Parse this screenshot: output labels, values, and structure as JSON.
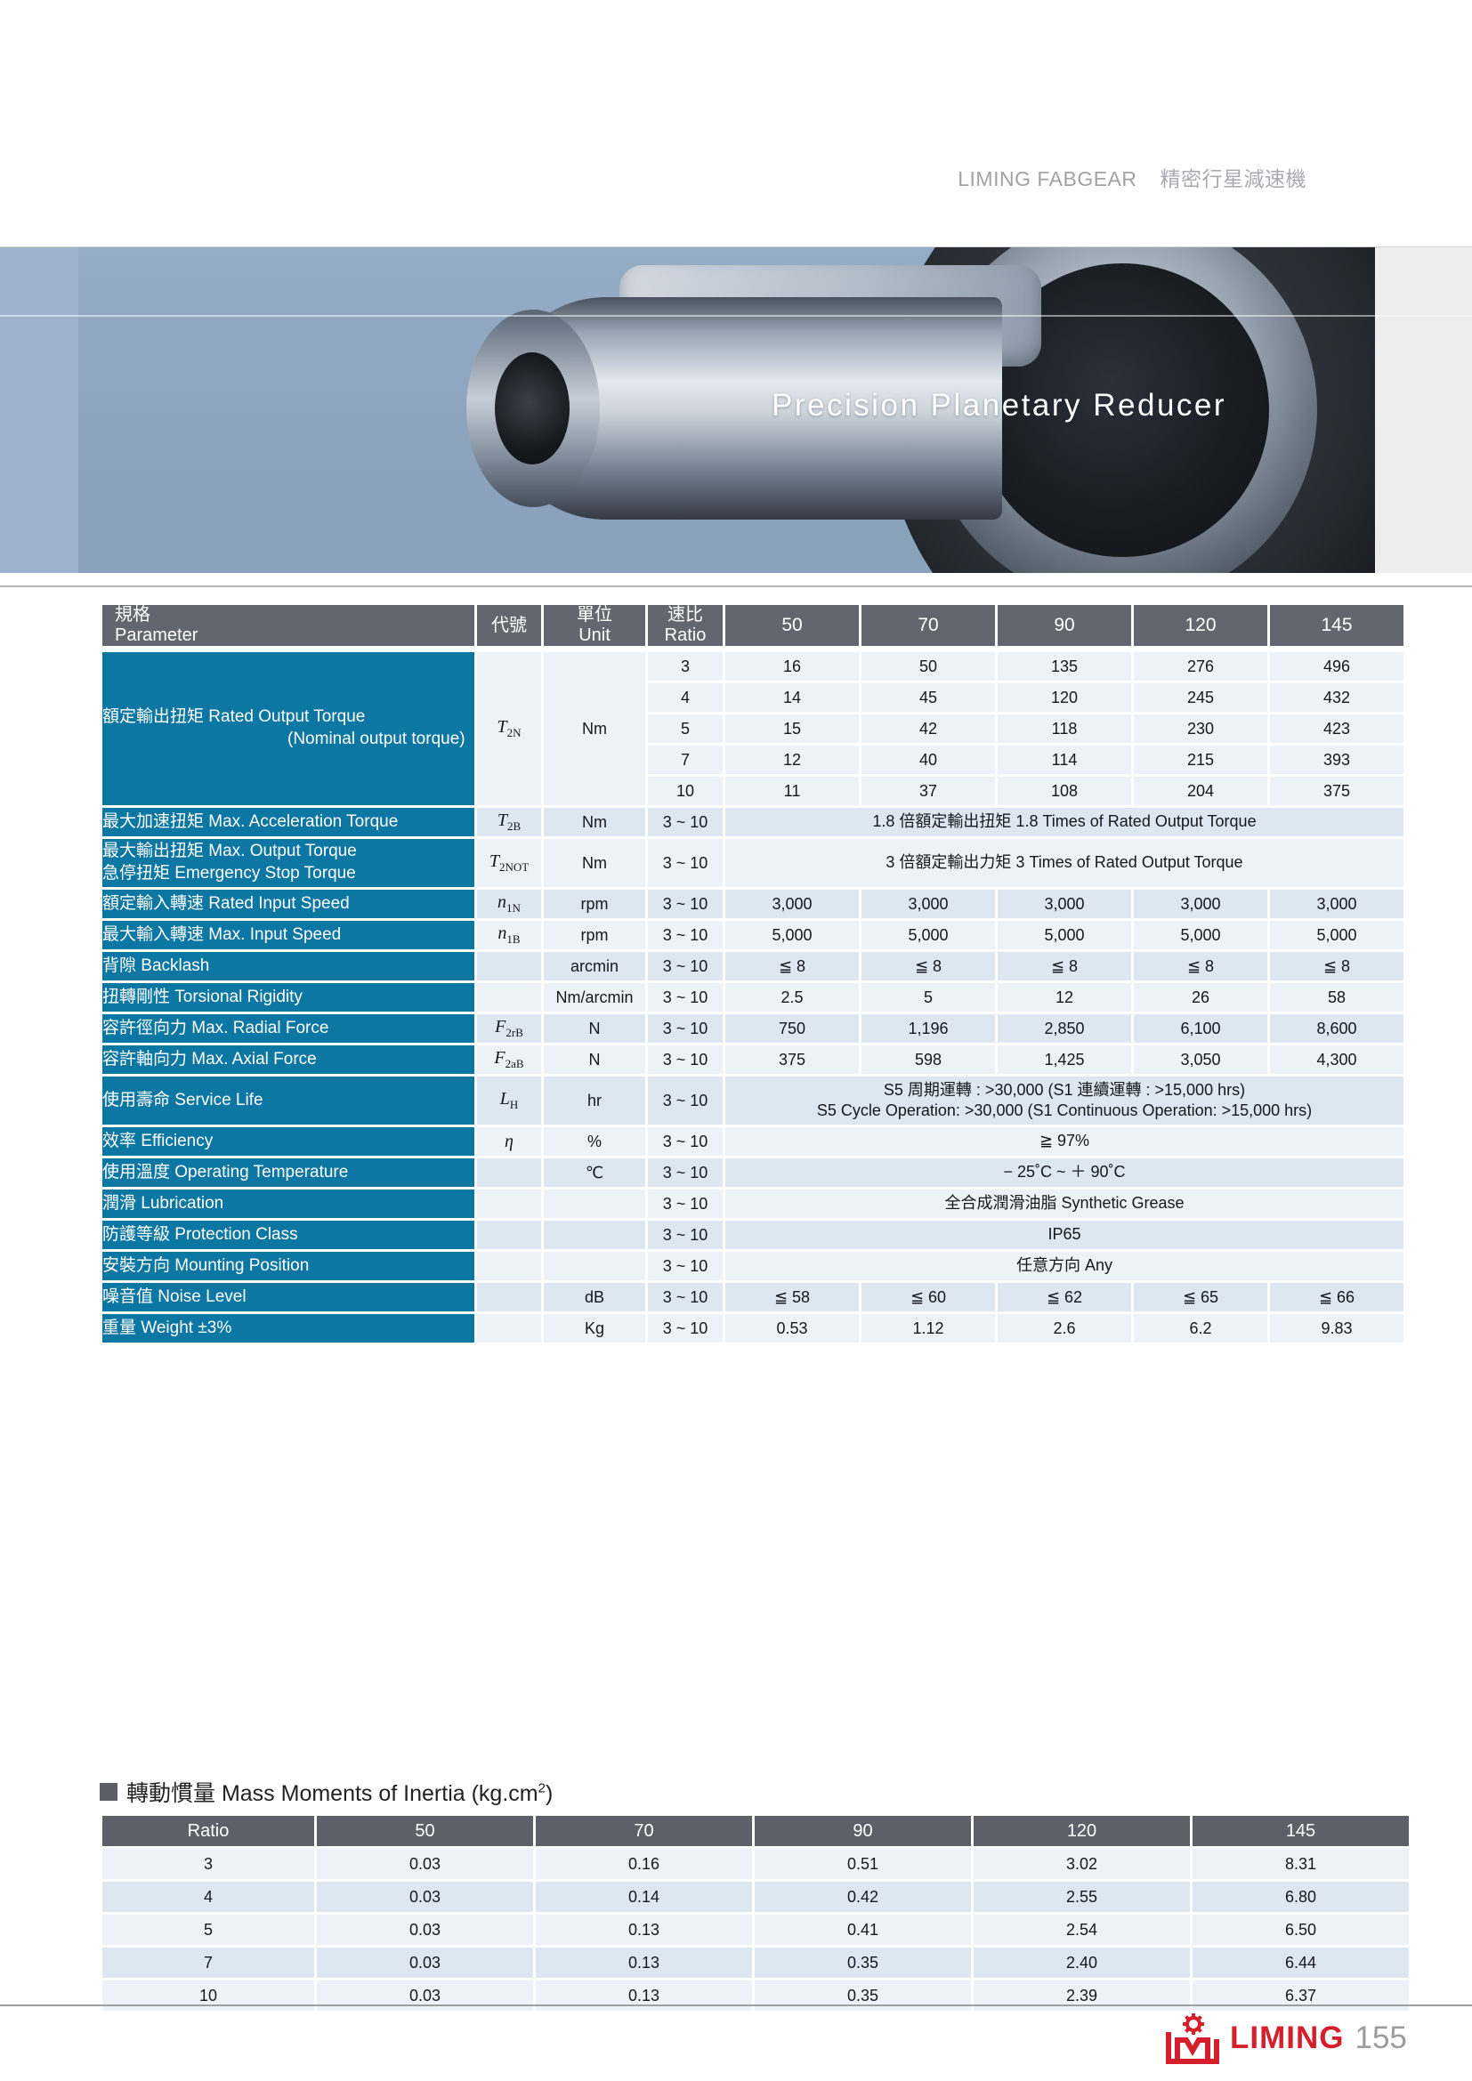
{
  "page_header": {
    "brand": "LIMING FABGEAR",
    "subtitle": "精密行星減速機"
  },
  "hero": {
    "title": "Precision Planetary Reducer"
  },
  "colors": {
    "label_teal": "#0d77a4",
    "header_gray": "#64666f",
    "inertia_header_gray": "#5d6069",
    "row_light": "#edf2f9",
    "row_dark": "#dce7f1",
    "brand_red": "#d51f2d",
    "hero_left_strip": "#9db4cc",
    "hero_right_strip": "#ededed"
  },
  "spec_table": {
    "headers": {
      "parameter_zh": "規格",
      "parameter_en": "Parameter",
      "symbol": "代號",
      "unit_zh": "單位",
      "unit_en": "Unit",
      "ratio_zh": "速比",
      "ratio_en": "Ratio",
      "sizes": [
        "50",
        "70",
        "90",
        "120",
        "145"
      ]
    },
    "rows": [
      {
        "id": "rated-output-torque",
        "label_lines": [
          "額定輸出扭矩 Rated Output Torque",
          "(Nominal output torque)"
        ],
        "indent_line2": true,
        "symbol": {
          "base": "T",
          "sub": "2N"
        },
        "unit": "Nm",
        "type": "multi",
        "shade": "light",
        "sub_rows": [
          {
            "ratio": "3",
            "values": [
              "16",
              "50",
              "135",
              "276",
              "496"
            ]
          },
          {
            "ratio": "4",
            "values": [
              "14",
              "45",
              "120",
              "245",
              "432"
            ]
          },
          {
            "ratio": "5",
            "values": [
              "15",
              "42",
              "118",
              "230",
              "423"
            ]
          },
          {
            "ratio": "7",
            "values": [
              "12",
              "40",
              "114",
              "215",
              "393"
            ]
          },
          {
            "ratio": "10",
            "values": [
              "11",
              "37",
              "108",
              "204",
              "375"
            ]
          }
        ]
      },
      {
        "id": "max-acceleration-torque",
        "label_lines": [
          "最大加速扭矩 Max. Acceleration Torque"
        ],
        "symbol": {
          "base": "T",
          "sub": "2B"
        },
        "unit": "Nm",
        "ratio": "3 ~ 10",
        "span": "1.8 倍額定輸出扭矩  1.8 Times of Rated Output Torque",
        "shade": "dark"
      },
      {
        "id": "max-output-emergency-stop-torque",
        "label_lines": [
          "最大輸出扭矩  Max. Output Torque",
          "急停扭矩  Emergency Stop Torque"
        ],
        "symbol": {
          "base": "T",
          "sub": "2NOT"
        },
        "unit": "Nm",
        "ratio": "3 ~ 10",
        "span": "3 倍額定輸出力矩  3 Times of Rated Output Torque",
        "shade": "light",
        "tall": true
      },
      {
        "id": "rated-input-speed",
        "label_lines": [
          "額定輸入轉速  Rated Input Speed"
        ],
        "symbol": {
          "base": "n",
          "sub": "1N"
        },
        "unit": "rpm",
        "ratio": "3 ~ 10",
        "values": [
          "3,000",
          "3,000",
          "3,000",
          "3,000",
          "3,000"
        ],
        "shade": "dark"
      },
      {
        "id": "max-input-speed",
        "label_lines": [
          "最大輸入轉速  Max. Input Speed"
        ],
        "symbol": {
          "base": "n",
          "sub": "1B"
        },
        "unit": "rpm",
        "ratio": "3 ~ 10",
        "values": [
          "5,000",
          "5,000",
          "5,000",
          "5,000",
          "5,000"
        ],
        "shade": "light"
      },
      {
        "id": "backlash",
        "label_lines": [
          "背隙  Backlash"
        ],
        "symbol": null,
        "unit": "arcmin",
        "ratio": "3 ~ 10",
        "values": [
          "≦ 8",
          "≦ 8",
          "≦ 8",
          "≦ 8",
          "≦ 8"
        ],
        "shade": "dark"
      },
      {
        "id": "torsional-rigidity",
        "label_lines": [
          "扭轉剛性  Torsional Rigidity"
        ],
        "symbol": null,
        "unit": "Nm/arcmin",
        "ratio": "3 ~ 10",
        "values": [
          "2.5",
          "5",
          "12",
          "26",
          "58"
        ],
        "shade": "light"
      },
      {
        "id": "max-radial-force",
        "label_lines": [
          "容許徑向力  Max. Radial Force"
        ],
        "symbol": {
          "base": "F",
          "sub": "2rB"
        },
        "unit": "N",
        "ratio": "3 ~ 10",
        "values": [
          "750",
          "1,196",
          "2,850",
          "6,100",
          "8,600"
        ],
        "shade": "dark"
      },
      {
        "id": "max-axial-force",
        "label_lines": [
          "容許軸向力  Max. Axial Force"
        ],
        "symbol": {
          "base": "F",
          "sub": "2aB"
        },
        "unit": "N",
        "ratio": "3 ~ 10",
        "values": [
          "375",
          "598",
          "1,425",
          "3,050",
          "4,300"
        ],
        "shade": "light"
      },
      {
        "id": "service-life",
        "label_lines": [
          "使用壽命  Service Life"
        ],
        "symbol": {
          "base": "L",
          "sub": "H"
        },
        "unit": "hr",
        "ratio": "3 ~ 10",
        "span_lines": [
          "S5 周期運轉 : >30,000 (S1 連續運轉 : >15,000 hrs)",
          "S5 Cycle Operation: >30,000 (S1 Continuous Operation: >15,000 hrs)"
        ],
        "shade": "dark",
        "tall": true
      },
      {
        "id": "efficiency",
        "label_lines": [
          "效率  Efficiency"
        ],
        "symbol": {
          "base": "η",
          "sub": ""
        },
        "unit": "%",
        "ratio": "3 ~ 10",
        "span": "≧ 97%",
        "shade": "light"
      },
      {
        "id": "operating-temperature",
        "label_lines": [
          "使用溫度  Operating Temperature"
        ],
        "symbol": null,
        "unit": "℃",
        "ratio": "3 ~ 10",
        "span": "− 25˚C ~ ＋ 90˚C",
        "shade": "dark"
      },
      {
        "id": "lubrication",
        "label_lines": [
          "潤滑  Lubrication"
        ],
        "symbol": null,
        "unit": "",
        "ratio": "3 ~ 10",
        "span": "全合成潤滑油脂  Synthetic Grease",
        "shade": "light"
      },
      {
        "id": "protection-class",
        "label_lines": [
          "防護等級  Protection Class"
        ],
        "symbol": null,
        "unit": "",
        "ratio": "3 ~ 10",
        "span": "IP65",
        "shade": "dark"
      },
      {
        "id": "mounting-position",
        "label_lines": [
          "安裝方向  Mounting Position"
        ],
        "symbol": null,
        "unit": "",
        "ratio": "3 ~ 10",
        "span": "任意方向  Any",
        "shade": "light"
      },
      {
        "id": "noise-level",
        "label_lines": [
          "噪音值  Noise Level"
        ],
        "symbol": null,
        "unit": "dB",
        "ratio": "3 ~ 10",
        "values": [
          "≦ 58",
          "≦ 60",
          "≦ 62",
          "≦ 65",
          "≦ 66"
        ],
        "shade": "dark"
      },
      {
        "id": "weight",
        "label_lines": [
          "重量  Weight ±3%"
        ],
        "symbol": null,
        "unit": "Kg",
        "ratio": "3 ~ 10",
        "values": [
          "0.53",
          "1.12",
          "2.6",
          "6.2",
          "9.83"
        ],
        "shade": "light"
      }
    ]
  },
  "inertia": {
    "title_main": "轉動慣量 Mass Moments of Inertia (kg.cm",
    "title_sup": "2",
    "title_end": ")",
    "headers": [
      "Ratio",
      "50",
      "70",
      "90",
      "120",
      "145"
    ],
    "rows": [
      [
        "3",
        "0.03",
        "0.16",
        "0.51",
        "3.02",
        "8.31"
      ],
      [
        "4",
        "0.03",
        "0.14",
        "0.42",
        "2.55",
        "6.80"
      ],
      [
        "5",
        "0.03",
        "0.13",
        "0.41",
        "2.54",
        "6.50"
      ],
      [
        "7",
        "0.03",
        "0.13",
        "0.35",
        "2.40",
        "6.44"
      ],
      [
        "10",
        "0.03",
        "0.13",
        "0.35",
        "2.39",
        "6.37"
      ]
    ]
  },
  "footer": {
    "brand": "LIMING",
    "page": "155"
  }
}
